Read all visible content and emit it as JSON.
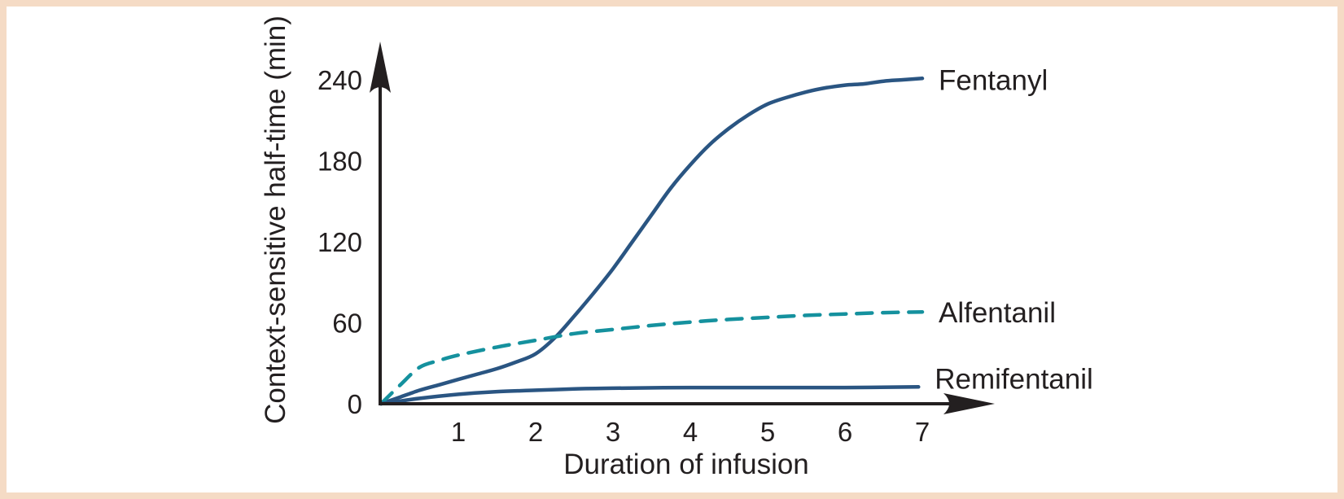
{
  "figure": {
    "background_color": "#ffffff",
    "border_color": "#f5dbc5"
  },
  "colors": {
    "axis": "#231f20",
    "text": "#231f20",
    "fentanyl_line": "#2a5582",
    "alfentanil_line": "#15919e",
    "remifentanil_line": "#2a5582"
  },
  "chart_data": {
    "type": "line",
    "title": "",
    "xlabel": "Duration of infusion",
    "ylabel": "Context-sensitive half-time (min)",
    "x_ticks": [
      1,
      2,
      3,
      4,
      5,
      6,
      7
    ],
    "y_ticks": [
      0,
      60,
      120,
      180,
      240
    ],
    "xlim": [
      0,
      7.9
    ],
    "ylim": [
      0,
      268
    ],
    "grid": false,
    "legend_position": "labels-at-line-ends",
    "series": [
      {
        "name": "Fentanyl",
        "style": "solid",
        "color": "#2a5582",
        "x": [
          0,
          0.25,
          0.5,
          0.75,
          1,
          1.25,
          1.5,
          1.75,
          2,
          2.25,
          2.5,
          2.75,
          3,
          3.25,
          3.5,
          3.75,
          4,
          4.25,
          4.5,
          4.75,
          5,
          5.25,
          5.5,
          5.75,
          6,
          6.25,
          6.5,
          6.75,
          7
        ],
        "values": [
          0,
          5,
          10,
          14,
          18,
          22,
          26,
          31,
          37,
          49,
          65,
          82,
          100,
          120,
          140,
          160,
          177,
          192,
          204,
          214,
          222,
          227,
          231,
          234,
          236,
          237,
          239,
          240,
          241
        ]
      },
      {
        "name": "Alfentanil",
        "style": "dashed",
        "color": "#15919e",
        "x": [
          0,
          0.25,
          0.5,
          0.75,
          1,
          1.5,
          2,
          2.5,
          3,
          3.5,
          4,
          4.5,
          5,
          5.5,
          6,
          6.5,
          7
        ],
        "values": [
          0,
          14,
          27,
          32,
          36,
          42,
          47,
          52,
          55,
          58,
          60.5,
          62.5,
          64,
          65.5,
          66.5,
          67.5,
          68
        ]
      },
      {
        "name": "Remifentanil",
        "style": "solid",
        "color": "#2a5582",
        "x": [
          0,
          0.25,
          0.5,
          1,
          1.5,
          2,
          2.5,
          3,
          4,
          5,
          6,
          6.95
        ],
        "values": [
          0,
          2,
          4,
          7,
          9,
          10,
          11,
          11.5,
          12,
          12,
          12,
          12.5
        ]
      }
    ]
  }
}
